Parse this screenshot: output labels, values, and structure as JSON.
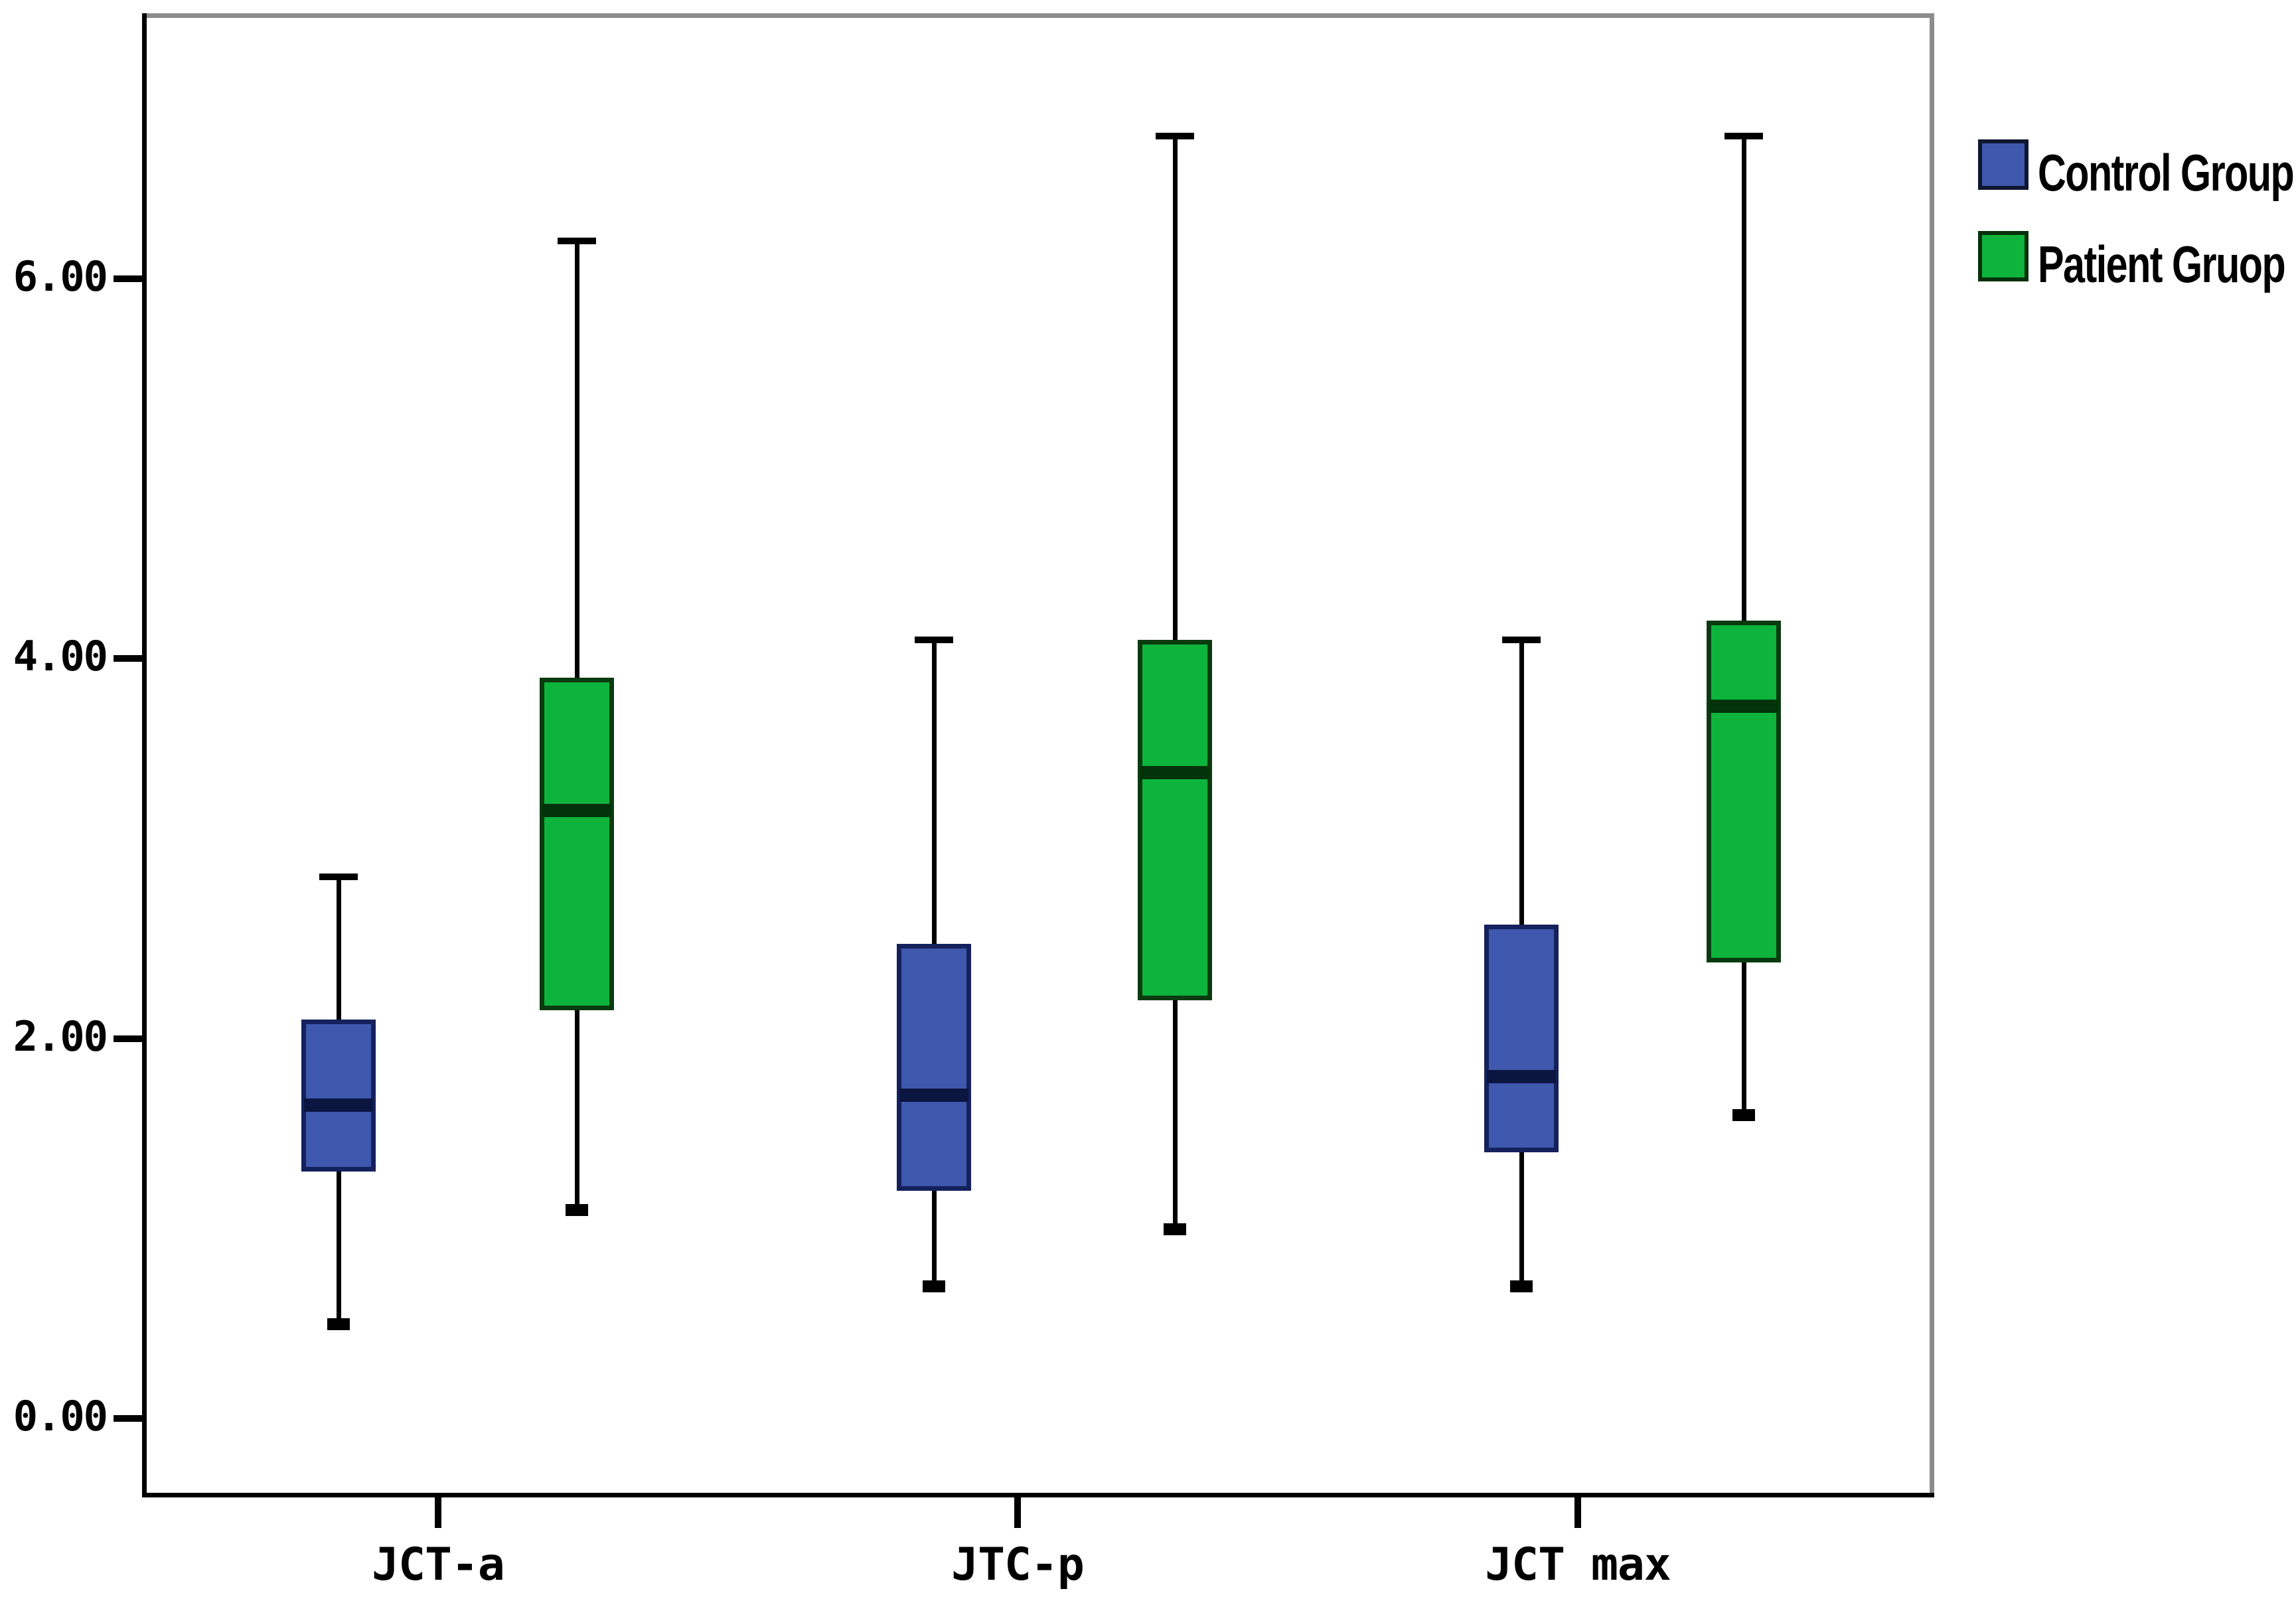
{
  "chart_data": {
    "type": "boxplot",
    "title": "",
    "xlabel": "",
    "ylabel": "",
    "categories": [
      "JCT-a",
      "JTC-p",
      "JCT max"
    ],
    "y_axis": {
      "tick_values": [
        0,
        2,
        4,
        6
      ],
      "tick_labels": [
        "0.00",
        "2.00",
        "4.00",
        "6.00"
      ],
      "range_shown": [
        -0.8,
        7.3
      ],
      "grid": false
    },
    "legend": {
      "position": "top-right",
      "entries": [
        {
          "label": "Control Group",
          "color": "#3d58ad"
        },
        {
          "label": "Patient Gruop",
          "color": "#0db43c"
        }
      ]
    },
    "series": [
      {
        "name": "Control Group",
        "fill": "#3d58ad",
        "border": "#14215c",
        "median_color": "#0a1540",
        "boxes": [
          {
            "category": "JCT-a",
            "min": 0.5,
            "q1": 1.3,
            "median": 1.65,
            "q3": 2.1,
            "max": 2.85
          },
          {
            "category": "JTC-p",
            "min": 0.7,
            "q1": 1.2,
            "median": 1.7,
            "q3": 2.5,
            "max": 4.1
          },
          {
            "category": "JCT max",
            "min": 0.7,
            "q1": 1.4,
            "median": 1.8,
            "q3": 2.6,
            "max": 4.1
          }
        ]
      },
      {
        "name": "Patient Gruop",
        "fill": "#0db43c",
        "border": "#0a3b10",
        "median_color": "#03330a",
        "boxes": [
          {
            "category": "JCT-a",
            "min": 1.1,
            "q1": 2.15,
            "median": 3.2,
            "q3": 3.9,
            "max": 6.2
          },
          {
            "category": "JTC-p",
            "min": 1.0,
            "q1": 2.2,
            "median": 3.4,
            "q3": 4.1,
            "max": 6.75
          },
          {
            "category": "JCT max",
            "min": 1.6,
            "q1": 2.4,
            "median": 3.75,
            "q3": 4.2,
            "max": 6.75
          }
        ]
      }
    ]
  }
}
